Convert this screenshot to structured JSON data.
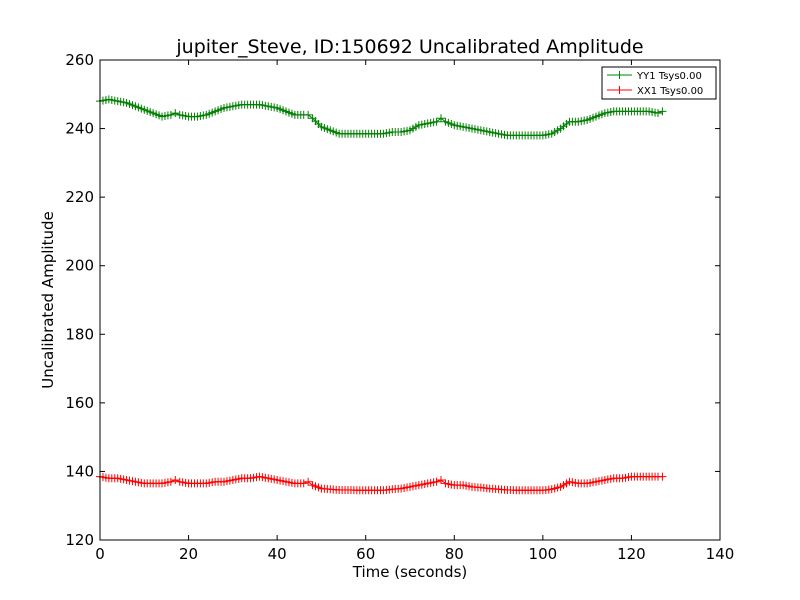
{
  "chart_data": {
    "type": "line",
    "title": "jupiter_Steve, ID:150692 Uncalibrated Amplitude",
    "xlabel": "Time (seconds)",
    "ylabel": "Uncalibrated Amplitude",
    "xlim": [
      0,
      140
    ],
    "ylim": [
      120,
      260
    ],
    "xticks": [
      0,
      20,
      40,
      60,
      80,
      100,
      120,
      140
    ],
    "yticks": [
      120,
      140,
      160,
      180,
      200,
      220,
      240,
      260
    ],
    "grid": false,
    "legend_position": "top-right",
    "series": [
      {
        "name": "YY1 Tsys0.00",
        "color": "#008000",
        "marker": "+",
        "x": [
          0,
          2,
          4,
          6,
          8,
          10,
          12,
          14,
          16,
          17,
          18,
          20,
          22,
          24,
          26,
          28,
          30,
          32,
          34,
          36,
          38,
          40,
          42,
          44,
          46,
          47,
          48,
          50,
          52,
          54,
          56,
          58,
          60,
          62,
          64,
          66,
          68,
          70,
          72,
          74,
          76,
          77,
          78,
          80,
          82,
          84,
          86,
          88,
          90,
          92,
          94,
          96,
          98,
          100,
          102,
          104,
          106,
          108,
          110,
          112,
          114,
          116,
          118,
          120,
          122,
          124,
          126,
          127
        ],
        "y": [
          248,
          248.5,
          248,
          247.5,
          246.5,
          245.5,
          244.5,
          243.5,
          244,
          244.5,
          244,
          243.5,
          243.5,
          244,
          245,
          246,
          246.5,
          247,
          247,
          247,
          246.5,
          246,
          245,
          244,
          244,
          244,
          243,
          240.5,
          239.5,
          238.5,
          238.5,
          238.5,
          238.5,
          238.5,
          238.5,
          239,
          239,
          239.5,
          241,
          241.5,
          242,
          243,
          242,
          241,
          240.5,
          240,
          239.5,
          239,
          238.5,
          238,
          238,
          238,
          238,
          238,
          238.5,
          240,
          242,
          242,
          242.5,
          243.5,
          244.5,
          245,
          245,
          245,
          245,
          245,
          244.5,
          245
        ]
      },
      {
        "name": "XX1 Tsys0.00",
        "color": "#ff0000",
        "marker": "+",
        "x": [
          0,
          2,
          4,
          6,
          8,
          10,
          12,
          14,
          16,
          17,
          18,
          20,
          22,
          24,
          26,
          28,
          30,
          32,
          34,
          36,
          38,
          40,
          42,
          44,
          46,
          47,
          48,
          50,
          52,
          54,
          56,
          58,
          60,
          62,
          64,
          66,
          68,
          70,
          72,
          74,
          76,
          77,
          78,
          80,
          82,
          84,
          86,
          88,
          90,
          92,
          94,
          96,
          98,
          100,
          102,
          104,
          106,
          108,
          110,
          112,
          114,
          116,
          118,
          120,
          122,
          124,
          126,
          127
        ],
        "y": [
          138.5,
          138,
          138,
          137.5,
          137,
          136.5,
          136.5,
          136.5,
          137,
          137.5,
          137,
          136.5,
          136.5,
          136.5,
          137,
          137,
          137.5,
          138,
          138,
          138.5,
          138,
          137.5,
          137,
          136.5,
          136.5,
          137,
          136,
          135,
          134.8,
          134.6,
          134.6,
          134.5,
          134.5,
          134.5,
          134.5,
          134.8,
          135,
          135.5,
          136,
          136.5,
          137,
          137.5,
          136.5,
          136,
          136,
          135.5,
          135.3,
          135,
          134.8,
          134.6,
          134.5,
          134.5,
          134.5,
          134.5,
          134.8,
          135.5,
          137,
          136.5,
          136.5,
          137,
          137.5,
          138,
          138,
          138.5,
          138.5,
          138.5,
          138.5,
          138.5
        ]
      }
    ]
  }
}
